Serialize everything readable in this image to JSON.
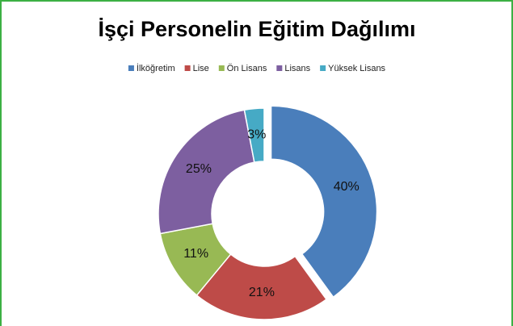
{
  "chart_data": {
    "type": "donut",
    "title": "İşçi Personelin Eğitim Dağılımı",
    "categories": [
      "İlköğretim",
      "Lise",
      "Ön Lisans",
      "Lisans",
      "Yüksek Lisans"
    ],
    "values": [
      40,
      21,
      11,
      25,
      3
    ],
    "value_labels": [
      "40%",
      "21%",
      "11%",
      "25%",
      "3%"
    ],
    "colors": [
      "#4a7ebb",
      "#be4b48",
      "#98b954",
      "#7d5fa0",
      "#46aac5"
    ],
    "legend": "top"
  }
}
